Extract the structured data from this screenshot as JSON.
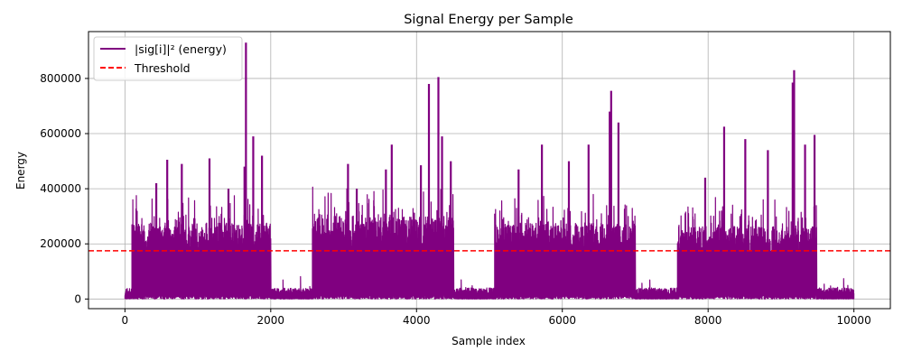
{
  "chart_data": {
    "type": "line",
    "title": "Signal Energy per Sample",
    "xlabel": "Sample index",
    "ylabel": "Energy",
    "xlim": [
      -500,
      10500
    ],
    "ylim": [
      -35000,
      970000
    ],
    "x_ticks": [
      0,
      2000,
      4000,
      6000,
      8000,
      10000
    ],
    "x_tick_labels": [
      "0",
      "2000",
      "4000",
      "6000",
      "8000",
      "10000"
    ],
    "y_ticks": [
      0,
      200000,
      400000,
      600000,
      800000
    ],
    "y_tick_labels": [
      "0",
      "200000",
      "400000",
      "600000",
      "800000"
    ],
    "grid": true,
    "legend_position": "top-left",
    "series": [
      {
        "name": "|sig[i]|² (energy)",
        "color": "#800080",
        "style": "solid",
        "bursts": [
          {
            "start": 95,
            "end": 2000,
            "base": 230000,
            "peaks": [
              [
                430,
                420000
              ],
              [
                580,
                505000
              ],
              [
                780,
                490000
              ],
              [
                1160,
                510000
              ],
              [
                1420,
                400000
              ],
              [
                1640,
                480000
              ],
              [
                1660,
                930000
              ],
              [
                1760,
                590000
              ],
              [
                1880,
                520000
              ]
            ]
          },
          {
            "start": 2570,
            "end": 4510,
            "base": 250000,
            "peaks": [
              [
                3060,
                490000
              ],
              [
                3180,
                400000
              ],
              [
                3580,
                470000
              ],
              [
                3660,
                560000
              ],
              [
                4060,
                485000
              ],
              [
                4170,
                780000
              ],
              [
                4300,
                805000
              ],
              [
                4350,
                590000
              ],
              [
                4470,
                500000
              ]
            ]
          },
          {
            "start": 5070,
            "end": 7000,
            "base": 230000,
            "peaks": [
              [
                5400,
                470000
              ],
              [
                5720,
                560000
              ],
              [
                6090,
                500000
              ],
              [
                6360,
                560000
              ],
              [
                6650,
                680000
              ],
              [
                6670,
                755000
              ],
              [
                6770,
                640000
              ]
            ]
          },
          {
            "start": 7580,
            "end": 9490,
            "base": 220000,
            "peaks": [
              [
                7960,
                440000
              ],
              [
                8220,
                625000
              ],
              [
                8510,
                580000
              ],
              [
                8820,
                540000
              ],
              [
                9160,
                785000
              ],
              [
                9180,
                830000
              ],
              [
                9330,
                560000
              ],
              [
                9460,
                595000
              ]
            ]
          }
        ],
        "quiet_level": 40000,
        "n_samples": 10000
      },
      {
        "name": "Threshold",
        "color": "#ff0000",
        "style": "dashed",
        "y": 175000
      }
    ]
  }
}
